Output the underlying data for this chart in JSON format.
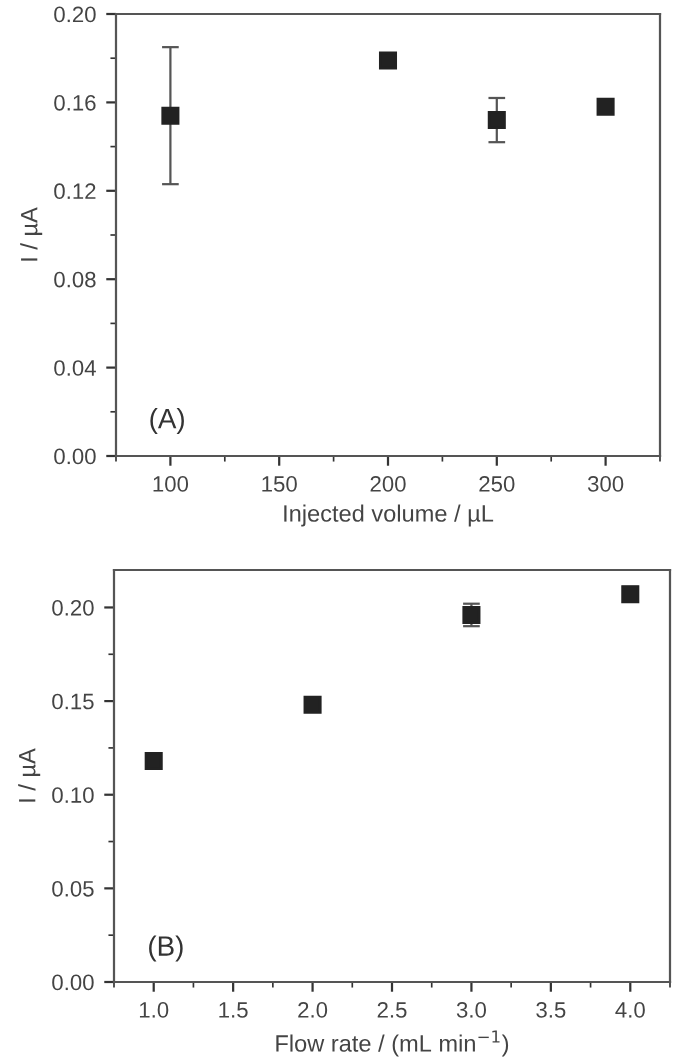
{
  "chart_data": [
    {
      "type": "scatter",
      "xlabel": "Injected volume / µL",
      "ylabel": "I / µA",
      "annotations": [
        "(A)"
      ],
      "x": [
        100,
        200,
        250,
        300
      ],
      "series": [
        {
          "color": "#222222",
          "values": [
            0.154,
            0.179,
            0.152,
            0.158
          ],
          "errors": [
            0.031,
            0.002,
            0.01,
            0.003
          ]
        }
      ],
      "xlim": [
        75,
        325
      ],
      "xticks": [
        100,
        150,
        200,
        250,
        300
      ],
      "ylim": [
        0,
        0.2
      ],
      "yticks": [
        {
          "value": 0,
          "label": "0.00"
        },
        {
          "value": 0.04,
          "label": "0.04"
        },
        {
          "value": 0.08,
          "label": "0.08"
        },
        {
          "value": 0.12,
          "label": "0.12"
        },
        {
          "value": 0.16,
          "label": "0.16"
        },
        {
          "value": 0.2,
          "label": "0.20"
        }
      ],
      "marker": "square",
      "grid": false,
      "legend": false
    },
    {
      "type": "scatter",
      "xlabel": "Flow rate / (mL min$^{−1}$)",
      "ylabel": "I / µA",
      "annotations": [
        "(B)"
      ],
      "x": [
        1.0,
        2.0,
        3.0,
        4.0
      ],
      "series": [
        {
          "color": "#222222",
          "values": [
            0.118,
            0.148,
            0.196,
            0.207
          ],
          "errors": [
            null,
            null,
            0.006,
            0.004
          ]
        }
      ],
      "xlim": [
        0.75,
        4.25
      ],
      "xticks": [
        {
          "value": 1,
          "label": "1.0"
        },
        {
          "value": 1.5,
          "label": "1.5"
        },
        {
          "value": 2,
          "label": "2.0"
        },
        {
          "value": 2.5,
          "label": "2.5"
        },
        {
          "value": 3,
          "label": "3.0"
        },
        {
          "value": 3.5,
          "label": "3.5"
        },
        {
          "value": 4,
          "label": "4.0"
        }
      ],
      "ylim": [
        0,
        0.22
      ],
      "yticks": [
        {
          "value": 0,
          "label": "0.00"
        },
        {
          "value": 0.05,
          "label": "0.05"
        },
        {
          "value": 0.1,
          "label": "0.10"
        },
        {
          "value": 0.15,
          "label": "0.15"
        },
        {
          "value": 0.2,
          "label": "0.20"
        }
      ],
      "marker": "square",
      "grid": false,
      "legend": false
    }
  ]
}
